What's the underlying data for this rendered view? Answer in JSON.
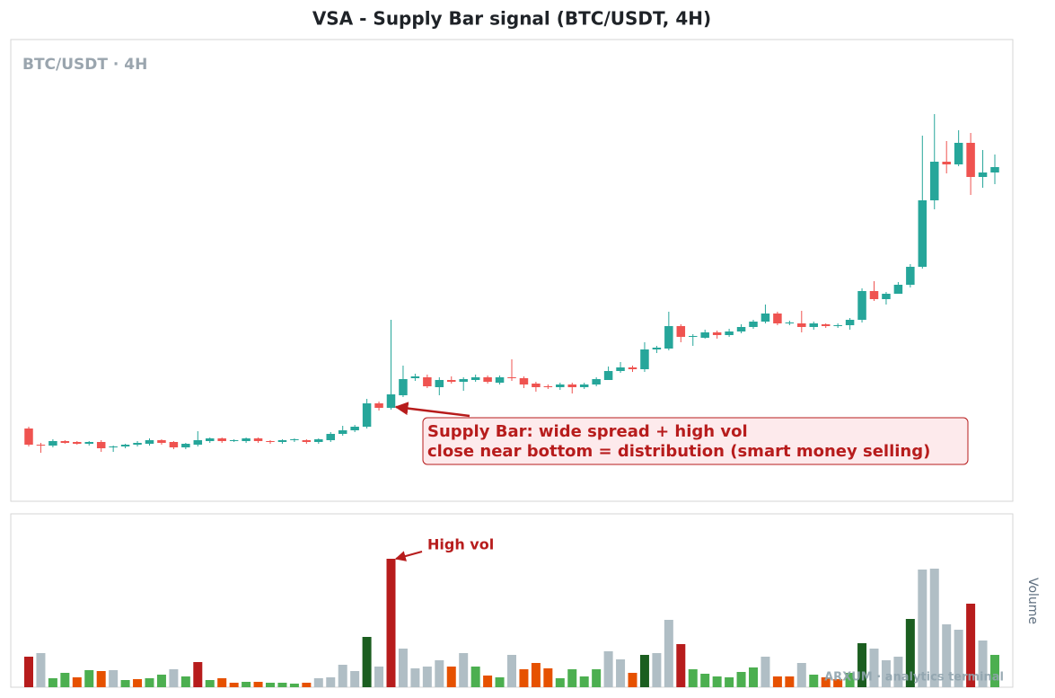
{
  "chart_data": {
    "type": "candlestick",
    "title": "VSA - Supply Bar signal (BTC/USDT, 4H)",
    "subtitle": "BTC/USDT · 4H",
    "volume_label": "Volume",
    "watermark": "ARXUM · analytics terminal",
    "annotations": {
      "supply": [
        "Supply Bar: wide spread + high vol",
        "close near bottom = distribution (smart money selling)"
      ],
      "volume": "High vol"
    },
    "up_color": "#26a69a",
    "down_color": "#ef5350",
    "ylim": [
      0,
      512
    ],
    "volume_ylim": [
      0,
      192
    ],
    "open": [
      80,
      62,
      61,
      66,
      65,
      63,
      65,
      59,
      60,
      62,
      63,
      67,
      65,
      59,
      62,
      66,
      69,
      66,
      66,
      69,
      66,
      65,
      67,
      67,
      65,
      67,
      74,
      78,
      82,
      108,
      103,
      117,
      136,
      137,
      126,
      134,
      132,
      134,
      137,
      131,
      137,
      136,
      130,
      127,
      126,
      129,
      126,
      129,
      134,
      144,
      148,
      146,
      168,
      169,
      194,
      182,
      181,
      187,
      184,
      188,
      193,
      199,
      208,
      197,
      197,
      193,
      196,
      194,
      195,
      201,
      233,
      224,
      230,
      240,
      260,
      334,
      377,
      374,
      398,
      360,
      365
    ],
    "high": [
      82,
      64,
      68,
      67,
      66,
      66,
      67,
      61,
      63,
      66,
      69,
      68,
      66,
      64,
      77,
      70,
      70,
      68,
      70,
      70,
      67,
      68,
      69,
      68,
      69,
      76,
      83,
      84,
      113,
      110,
      201,
      150,
      141,
      140,
      137,
      138,
      137,
      140,
      139,
      139,
      157,
      138,
      132,
      129,
      131,
      131,
      131,
      137,
      149,
      154,
      150,
      176,
      172,
      210,
      196,
      185,
      190,
      189,
      191,
      196,
      201,
      218,
      210,
      200,
      211,
      199,
      197,
      197,
      203,
      236,
      244,
      232,
      243,
      263,
      406,
      430,
      400,
      412,
      409,
      390,
      385
    ],
    "low": [
      60,
      53,
      59,
      63,
      62,
      61,
      54,
      54,
      58,
      60,
      61,
      62,
      57,
      57,
      60,
      64,
      64,
      65,
      64,
      64,
      63,
      63,
      65,
      63,
      63,
      65,
      72,
      76,
      80,
      100,
      101,
      115,
      133,
      125,
      117,
      130,
      122,
      132,
      130,
      129,
      133,
      125,
      121,
      124,
      123,
      119,
      124,
      127,
      135,
      142,
      143,
      143,
      164,
      167,
      176,
      172,
      180,
      180,
      182,
      186,
      191,
      197,
      195,
      195,
      187,
      190,
      192,
      192,
      190,
      198,
      222,
      218,
      230,
      237,
      258,
      324,
      364,
      372,
      340,
      348,
      352
    ],
    "close": [
      62,
      61,
      66,
      64,
      63,
      65,
      58,
      60,
      62,
      64,
      67,
      64,
      59,
      63,
      67,
      69,
      66,
      67,
      69,
      66,
      65,
      67,
      68,
      65,
      68,
      74,
      78,
      82,
      108,
      103,
      118,
      135,
      138,
      127,
      134,
      132,
      135,
      137,
      132,
      137,
      136,
      129,
      126,
      126,
      129,
      126,
      129,
      135,
      144,
      148,
      146,
      168,
      170,
      194,
      182,
      183,
      187,
      184,
      188,
      193,
      199,
      208,
      197,
      198,
      193,
      197,
      194,
      195,
      201,
      233,
      224,
      230,
      240,
      260,
      334,
      377,
      374,
      398,
      360,
      365,
      371
    ],
    "volume": [
      34,
      38,
      10,
      16,
      11,
      19,
      18,
      19,
      8,
      9,
      10,
      14,
      20,
      12,
      28,
      8,
      10,
      5,
      6,
      6,
      5,
      5,
      4,
      5,
      10,
      11,
      25,
      18,
      56,
      23,
      143,
      43,
      21,
      23,
      30,
      23,
      38,
      23,
      13,
      11,
      36,
      20,
      27,
      21,
      10,
      20,
      12,
      20,
      40,
      31,
      16,
      36,
      38,
      75,
      48,
      20,
      15,
      12,
      11,
      17,
      22,
      34,
      12,
      12,
      27,
      14,
      11,
      9,
      16,
      49,
      43,
      30,
      34,
      76,
      131,
      132,
      70,
      64,
      93,
      52,
      36
    ],
    "volume_colors": [
      "#b71c1c",
      "#b0bec5",
      "#4caf50",
      "#4caf50",
      "#e65100",
      "#4caf50",
      "#e65100",
      "#b0bec5",
      "#4caf50",
      "#e65100",
      "#4caf50",
      "#4caf50",
      "#b0bec5",
      "#4caf50",
      "#b71c1c",
      "#4caf50",
      "#e65100",
      "#e65100",
      "#4caf50",
      "#e65100",
      "#4caf50",
      "#4caf50",
      "#4caf50",
      "#e65100",
      "#b0bec5",
      "#b0bec5",
      "#b0bec5",
      "#b0bec5",
      "#1b5e20",
      "#b0bec5",
      "#b71c1c",
      "#b0bec5",
      "#b0bec5",
      "#b0bec5",
      "#b0bec5",
      "#e65100",
      "#b0bec5",
      "#4caf50",
      "#e65100",
      "#4caf50",
      "#b0bec5",
      "#e65100",
      "#e65100",
      "#e65100",
      "#4caf50",
      "#4caf50",
      "#4caf50",
      "#4caf50",
      "#b0bec5",
      "#b0bec5",
      "#e65100",
      "#1b5e20",
      "#b0bec5",
      "#b0bec5",
      "#b71c1c",
      "#4caf50",
      "#4caf50",
      "#4caf50",
      "#4caf50",
      "#4caf50",
      "#4caf50",
      "#b0bec5",
      "#e65100",
      "#e65100",
      "#b0bec5",
      "#4caf50",
      "#e65100",
      "#e65100",
      "#4caf50",
      "#1b5e20",
      "#b0bec5",
      "#b0bec5",
      "#b0bec5",
      "#1b5e20",
      "#b0bec5",
      "#b0bec5",
      "#b0bec5",
      "#b0bec5",
      "#b71c1c",
      "#b0bec5",
      "#4caf50"
    ]
  }
}
